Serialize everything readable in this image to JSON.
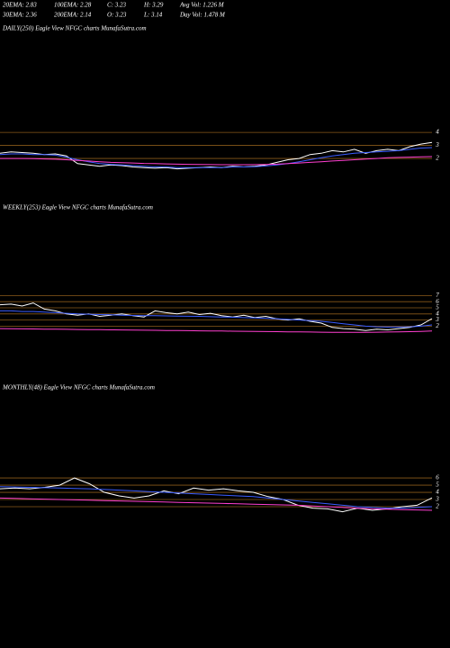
{
  "header": {
    "row1": [
      "20EMA: 2.83",
      "100EMA: 2.28",
      "C: 3.23",
      "H: 3.29",
      "Avg Vol: 1.226  M"
    ],
    "row2": [
      "30EMA: 2.36",
      "200EMA: 2.14",
      "O: 3.23",
      "L: 3.14",
      "Day Vol: 1.478  M"
    ]
  },
  "chart_data": [
    {
      "type": "line",
      "title": "DAILY(250) Eagle  View  NFGC charts MunafaSutra.com",
      "ylim": [
        0,
        11.4
      ],
      "yticks": [
        2,
        3,
        4
      ],
      "grid": true,
      "grid_color": "#8a5a1a",
      "series": [
        {
          "color": "#ffffff",
          "values": [
            2.4,
            2.5,
            2.45,
            2.4,
            2.3,
            2.35,
            2.2,
            1.6,
            1.5,
            1.4,
            1.5,
            1.45,
            1.35,
            1.3,
            1.25,
            1.3,
            1.2,
            1.25,
            1.3,
            1.35,
            1.3,
            1.4,
            1.35,
            1.4,
            1.5,
            1.7,
            1.9,
            2.0,
            2.3,
            2.4,
            2.6,
            2.5,
            2.7,
            2.4,
            2.6,
            2.7,
            2.6,
            2.9,
            3.1,
            3.23
          ]
        },
        {
          "color": "#3a5cff",
          "values": [
            2.3,
            2.35,
            2.35,
            2.3,
            2.3,
            2.25,
            2.1,
            1.9,
            1.75,
            1.6,
            1.55,
            1.5,
            1.45,
            1.4,
            1.35,
            1.35,
            1.3,
            1.3,
            1.3,
            1.3,
            1.3,
            1.35,
            1.35,
            1.37,
            1.42,
            1.5,
            1.6,
            1.75,
            1.9,
            2.05,
            2.2,
            2.3,
            2.4,
            2.45,
            2.5,
            2.55,
            2.6,
            2.7,
            2.8,
            2.83
          ]
        },
        {
          "color": "#ff3fd0",
          "values": [
            2.0,
            2.0,
            2.0,
            1.98,
            1.96,
            1.94,
            1.9,
            1.85,
            1.8,
            1.75,
            1.7,
            1.68,
            1.65,
            1.62,
            1.6,
            1.58,
            1.56,
            1.55,
            1.54,
            1.53,
            1.52,
            1.52,
            1.52,
            1.53,
            1.54,
            1.56,
            1.6,
            1.65,
            1.7,
            1.75,
            1.8,
            1.85,
            1.9,
            1.95,
            2.0,
            2.05,
            2.08,
            2.1,
            2.12,
            2.14
          ]
        }
      ]
    },
    {
      "type": "line",
      "title": "WEEKLY(253) Eagle  View  NFGC charts MunafaSutra.com",
      "ylim": [
        0,
        20
      ],
      "yticks": [
        2,
        3,
        4,
        5,
        6,
        7
      ],
      "grid": true,
      "grid_color": "#8a5a1a",
      "series": [
        {
          "color": "#ffffff",
          "values": [
            5.5,
            5.6,
            5.3,
            5.8,
            4.8,
            4.5,
            4.0,
            3.8,
            4.0,
            3.6,
            3.8,
            4.0,
            3.7,
            3.5,
            4.5,
            4.2,
            4.0,
            4.3,
            3.9,
            4.1,
            3.7,
            3.5,
            3.8,
            3.4,
            3.6,
            3.2,
            3.0,
            3.2,
            2.8,
            2.5,
            1.8,
            1.6,
            1.5,
            1.3,
            1.5,
            1.4,
            1.6,
            1.8,
            2.2,
            3.23
          ]
        },
        {
          "color": "#3a5cff",
          "values": [
            4.5,
            4.5,
            4.4,
            4.4,
            4.3,
            4.2,
            4.1,
            4.0,
            3.95,
            3.9,
            3.85,
            3.8,
            3.75,
            3.7,
            3.7,
            3.68,
            3.65,
            3.62,
            3.6,
            3.55,
            3.5,
            3.45,
            3.4,
            3.35,
            3.3,
            3.2,
            3.1,
            3.0,
            2.9,
            2.8,
            2.6,
            2.4,
            2.2,
            2.0,
            1.9,
            1.85,
            1.85,
            1.9,
            2.0,
            2.2
          ]
        },
        {
          "color": "#ff3fd0",
          "values": [
            1.6,
            1.58,
            1.56,
            1.54,
            1.52,
            1.5,
            1.48,
            1.46,
            1.44,
            1.42,
            1.4,
            1.38,
            1.36,
            1.34,
            1.32,
            1.3,
            1.28,
            1.26,
            1.24,
            1.22,
            1.2,
            1.18,
            1.16,
            1.14,
            1.12,
            1.1,
            1.08,
            1.06,
            1.04,
            1.02,
            1.0,
            1.0,
            1.0,
            1.0,
            1.02,
            1.04,
            1.06,
            1.1,
            1.15,
            1.2
          ]
        }
      ]
    },
    {
      "type": "line",
      "title": "MONTHLY(48) Eagle  View  NFGC charts MunafaSutra.com",
      "ylim": [
        0,
        17.4
      ],
      "yticks": [
        2,
        3,
        4,
        5,
        6
      ],
      "grid": true,
      "grid_color": "#8a5a1a",
      "series": [
        {
          "color": "#ffffff",
          "values": [
            4.5,
            4.6,
            4.5,
            4.7,
            5.0,
            6.0,
            5.2,
            4.0,
            3.5,
            3.2,
            3.5,
            4.2,
            3.8,
            4.6,
            4.3,
            4.5,
            4.2,
            4.0,
            3.4,
            3.0,
            2.2,
            1.8,
            1.7,
            1.3,
            1.8,
            1.5,
            1.7,
            2.0,
            2.2,
            3.23
          ]
        },
        {
          "color": "#3a5cff",
          "values": [
            4.8,
            4.75,
            4.7,
            4.65,
            4.6,
            4.55,
            4.5,
            4.4,
            4.3,
            4.2,
            4.1,
            4.0,
            3.9,
            3.8,
            3.7,
            3.6,
            3.5,
            3.4,
            3.2,
            3.0,
            2.8,
            2.6,
            2.4,
            2.2,
            2.0,
            1.9,
            1.8,
            1.8,
            1.9,
            2.0
          ]
        },
        {
          "color": "#ff3fd0",
          "values": [
            3.2,
            3.15,
            3.1,
            3.05,
            3.0,
            2.95,
            2.9,
            2.85,
            2.8,
            2.75,
            2.7,
            2.65,
            2.6,
            2.55,
            2.5,
            2.45,
            2.4,
            2.35,
            2.3,
            2.25,
            2.2,
            2.1,
            2.0,
            1.9,
            1.8,
            1.7,
            1.65,
            1.6,
            1.55,
            1.5
          ]
        }
      ]
    }
  ]
}
